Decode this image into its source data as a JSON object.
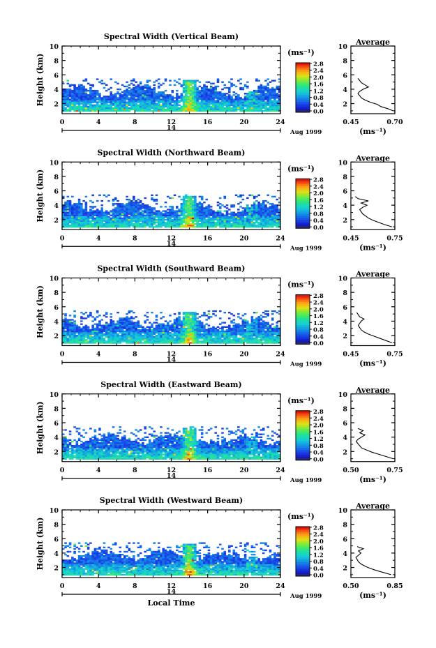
{
  "chart_data": [
    {
      "type": "heatmap",
      "title": "Spectral Width (Vertical Beam)",
      "ylabel": "Height (km)",
      "xlim": [
        0,
        24
      ],
      "ylim": [
        0.6,
        10
      ],
      "x_ticks": [
        0,
        4,
        8,
        12,
        16,
        20,
        24
      ],
      "y_ticks": [
        2,
        4,
        6,
        8,
        10
      ],
      "date_axis": {
        "label": "14",
        "suffix": "Aug 1999"
      },
      "colorbar": {
        "unit": "(ms⁻¹)",
        "ticks": [
          "0.0",
          "0.4",
          "0.8",
          "1.2",
          "1.6",
          "2.0",
          "2.4",
          "2.8"
        ]
      },
      "profile": {
        "title": "Average",
        "xlabel": "(ms⁻¹)",
        "xlim": [
          0.45,
          0.7
        ],
        "x_ticks": [
          "0.45",
          "0.70"
        ],
        "heights": [
          1.0,
          1.3,
          1.6,
          1.9,
          2.2,
          2.5,
          2.8,
          3.1,
          3.4,
          3.7,
          4.0,
          4.3,
          4.6,
          4.9,
          5.2,
          5.5
        ],
        "values": [
          0.69,
          0.66,
          0.62,
          0.6,
          0.56,
          0.53,
          0.51,
          0.5,
          0.49,
          0.5,
          0.52,
          0.55,
          0.53,
          0.51,
          0.5,
          0.49
        ]
      }
    },
    {
      "type": "heatmap",
      "title": "Spectral Width (Northward Beam)",
      "ylabel": "Height (km)",
      "xlim": [
        0,
        24
      ],
      "ylim": [
        0.6,
        10
      ],
      "x_ticks": [
        0,
        4,
        8,
        12,
        16,
        20,
        24
      ],
      "y_ticks": [
        2,
        4,
        6,
        8,
        10
      ],
      "date_axis": {
        "label": "14",
        "suffix": "Aug 1999"
      },
      "colorbar": {
        "unit": "(ms⁻¹)",
        "ticks": [
          "0.0",
          "0.4",
          "0.8",
          "1.2",
          "1.6",
          "2.0",
          "2.4",
          "2.8"
        ]
      },
      "profile": {
        "title": "Average",
        "xlabel": "(ms⁻¹)",
        "xlim": [
          0.45,
          0.75
        ],
        "x_ticks": [
          "0.45",
          "0.75"
        ],
        "heights": [
          1.0,
          1.3,
          1.6,
          1.9,
          2.2,
          2.5,
          2.8,
          3.1,
          3.4,
          3.7,
          4.0,
          4.3,
          4.6,
          4.9,
          5.2
        ],
        "values": [
          0.73,
          0.68,
          0.64,
          0.6,
          0.57,
          0.55,
          0.53,
          0.52,
          0.51,
          0.53,
          0.56,
          0.52,
          0.57,
          0.5,
          0.48
        ]
      }
    },
    {
      "type": "heatmap",
      "title": "Spectral Width (Southward Beam)",
      "ylabel": "Height (km)",
      "xlim": [
        0,
        24
      ],
      "ylim": [
        0.6,
        10
      ],
      "x_ticks": [
        0,
        4,
        8,
        12,
        16,
        20,
        24
      ],
      "y_ticks": [
        2,
        4,
        6,
        8,
        10
      ],
      "date_axis": {
        "label": "14",
        "suffix": "Aug 1999"
      },
      "colorbar": {
        "unit": "(ms⁻¹)",
        "ticks": [
          "0.0",
          "0.4",
          "0.8",
          "1.2",
          "1.6",
          "2.0",
          "2.4",
          "2.8"
        ]
      },
      "profile": {
        "title": "Average",
        "xlabel": "(ms⁻¹)",
        "xlim": [
          0.45,
          0.75
        ],
        "x_ticks": [
          "0.45",
          "0.75"
        ],
        "heights": [
          1.0,
          1.3,
          1.6,
          1.9,
          2.2,
          2.5,
          2.8,
          3.1,
          3.4,
          3.7,
          4.0,
          4.3,
          4.6,
          4.9,
          5.2
        ],
        "values": [
          0.73,
          0.69,
          0.65,
          0.61,
          0.57,
          0.54,
          0.52,
          0.51,
          0.5,
          0.51,
          0.52,
          0.54,
          0.51,
          0.5,
          0.49
        ]
      }
    },
    {
      "type": "heatmap",
      "title": "Spectral Width (Eastward Beam)",
      "ylabel": "Height (km)",
      "xlim": [
        0,
        24
      ],
      "ylim": [
        0.6,
        10
      ],
      "x_ticks": [
        0,
        4,
        8,
        12,
        16,
        20,
        24
      ],
      "y_ticks": [
        2,
        4,
        6,
        8,
        10
      ],
      "date_axis": {
        "label": "14",
        "suffix": "Aug 1999"
      },
      "colorbar": {
        "unit": "(ms⁻¹)",
        "ticks": [
          "0.0",
          "0.4",
          "0.8",
          "1.2",
          "1.6",
          "2.0",
          "2.4",
          "2.8"
        ]
      },
      "profile": {
        "title": "Average",
        "xlabel": "(ms⁻¹)",
        "xlim": [
          0.5,
          0.75
        ],
        "x_ticks": [
          "0.50",
          "0.75"
        ],
        "heights": [
          1.0,
          1.3,
          1.6,
          1.9,
          2.2,
          2.5,
          2.8,
          3.1,
          3.4,
          3.7,
          4.0,
          4.3,
          4.6,
          4.9,
          5.2
        ],
        "values": [
          0.74,
          0.7,
          0.66,
          0.62,
          0.59,
          0.56,
          0.55,
          0.54,
          0.53,
          0.54,
          0.56,
          0.58,
          0.55,
          0.57,
          0.54
        ]
      }
    },
    {
      "type": "heatmap",
      "title": "Spectral Width (Westward Beam)",
      "ylabel": "Height (km)",
      "xlabel": "Local Time",
      "xlim": [
        0,
        24
      ],
      "ylim": [
        0.6,
        10
      ],
      "x_ticks": [
        0,
        4,
        8,
        12,
        16,
        20,
        24
      ],
      "y_ticks": [
        2,
        4,
        6,
        8,
        10
      ],
      "date_axis": {
        "label": "14",
        "suffix": "Aug 1999"
      },
      "colorbar": {
        "unit": "(ms⁻¹)",
        "ticks": [
          "0.0",
          "0.4",
          "0.8",
          "1.2",
          "1.6",
          "2.0",
          "2.4",
          "2.8"
        ]
      },
      "profile": {
        "title": "Average",
        "xlabel": "(ms⁻¹)",
        "xlim": [
          0.5,
          0.85
        ],
        "x_ticks": [
          "0.50",
          "0.85"
        ],
        "heights": [
          1.0,
          1.3,
          1.6,
          1.9,
          2.2,
          2.5,
          2.8,
          3.1,
          3.4,
          3.7,
          4.0,
          4.3,
          4.6,
          4.9
        ],
        "values": [
          0.82,
          0.76,
          0.7,
          0.65,
          0.61,
          0.58,
          0.56,
          0.55,
          0.54,
          0.56,
          0.58,
          0.56,
          0.6,
          0.55
        ]
      }
    }
  ]
}
